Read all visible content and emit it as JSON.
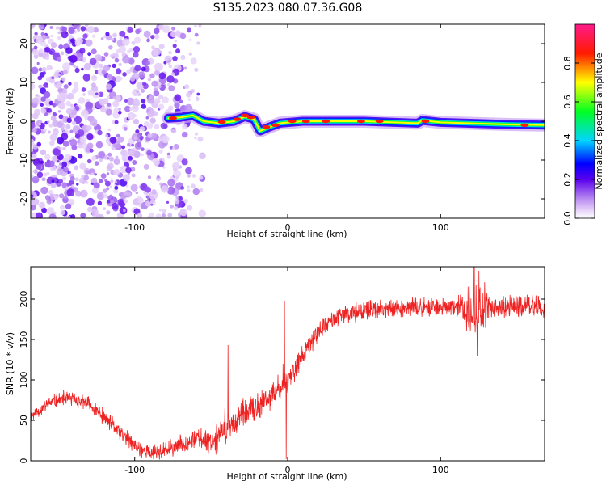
{
  "figure_title": "S135.2023.080.07.36.G08",
  "chart_data": [
    {
      "type": "heatmap",
      "title": "S135.2023.080.07.36.G08",
      "xlabel": "Height of straight line (km)",
      "ylabel": "Frequency (Hz)",
      "xlim": [
        -168,
        168
      ],
      "ylim": [
        -25,
        25
      ],
      "x_ticks": [
        -100,
        0,
        100
      ],
      "x_tick_labels": [
        "-100",
        "0",
        "100"
      ],
      "y_ticks": [
        -20,
        -10,
        0,
        10,
        20
      ],
      "y_tick_labels": [
        "-20",
        "-10",
        "0",
        "10",
        "20"
      ],
      "colorbar": {
        "label": "Normalized spectral amplitude",
        "range": [
          0,
          1
        ],
        "ticks": [
          0.0,
          0.2,
          0.4,
          0.6,
          0.8
        ],
        "tick_labels": [
          "0.0",
          "0.2",
          "0.4",
          "0.6",
          "0.8"
        ],
        "colormap": "rainbow (white → purple → blue → cyan → green → yellow → red → pink)"
      },
      "noise_region": {
        "x_range": [
          -168,
          -55
        ],
        "amplitude": "low (0.05–0.25)"
      },
      "ridge": [
        {
          "x": -78,
          "y": 0.8
        },
        {
          "x": -70,
          "y": 1.0
        },
        {
          "x": -62,
          "y": 1.5
        },
        {
          "x": -55,
          "y": 0.0
        },
        {
          "x": -45,
          "y": -0.5
        },
        {
          "x": -35,
          "y": 0.0
        },
        {
          "x": -28,
          "y": 1.2
        },
        {
          "x": -22,
          "y": 0.5
        },
        {
          "x": -18,
          "y": -2.5
        },
        {
          "x": -12,
          "y": -1.5
        },
        {
          "x": -5,
          "y": -0.5
        },
        {
          "x": 10,
          "y": 0.0
        },
        {
          "x": 50,
          "y": 0.0
        },
        {
          "x": 85,
          "y": -0.5
        },
        {
          "x": 88,
          "y": 0.2
        },
        {
          "x": 100,
          "y": -0.3
        },
        {
          "x": 140,
          "y": -0.8
        },
        {
          "x": 168,
          "y": -1.0
        }
      ],
      "peaks": [
        {
          "x": -75,
          "y": 0.8
        },
        {
          "x": -43,
          "y": -0.2
        },
        {
          "x": -33,
          "y": 0.5
        },
        {
          "x": -28,
          "y": 1.5
        },
        {
          "x": -24,
          "y": 1.0
        },
        {
          "x": -14,
          "y": -1.5
        },
        {
          "x": -8,
          "y": -1.0
        },
        {
          "x": 3,
          "y": 0.0
        },
        {
          "x": 12,
          "y": 0.0
        },
        {
          "x": 25,
          "y": 0.0
        },
        {
          "x": 48,
          "y": 0.0
        },
        {
          "x": 60,
          "y": 0.0
        },
        {
          "x": 90,
          "y": 0.0
        },
        {
          "x": 155,
          "y": -1.0
        }
      ],
      "noise_seed": 7
    },
    {
      "type": "line",
      "xlabel": "Height of straight line (km)",
      "ylabel": "SNR (10 * v/v)",
      "xlim": [
        -168,
        168
      ],
      "ylim": [
        0,
        240
      ],
      "x_ticks": [
        -100,
        0,
        100
      ],
      "x_tick_labels": [
        "-100",
        "0",
        "100"
      ],
      "y_ticks": [
        0,
        50,
        100,
        150,
        200
      ],
      "y_tick_labels": [
        "0",
        "50",
        "100",
        "150",
        "200"
      ],
      "series": [
        {
          "color": "#ee2222",
          "trend": [
            {
              "x": -168,
              "y": 55
            },
            {
              "x": -155,
              "y": 72
            },
            {
              "x": -145,
              "y": 78
            },
            {
              "x": -130,
              "y": 70
            },
            {
              "x": -115,
              "y": 45
            },
            {
              "x": -100,
              "y": 18
            },
            {
              "x": -90,
              "y": 10
            },
            {
              "x": -80,
              "y": 12
            },
            {
              "x": -70,
              "y": 20
            },
            {
              "x": -60,
              "y": 28
            },
            {
              "x": -50,
              "y": 25
            },
            {
              "x": -45,
              "y": 30
            },
            {
              "x": -40,
              "y": 40
            },
            {
              "x": -30,
              "y": 55
            },
            {
              "x": -20,
              "y": 65
            },
            {
              "x": -10,
              "y": 80
            },
            {
              "x": 0,
              "y": 100
            },
            {
              "x": 10,
              "y": 130
            },
            {
              "x": 20,
              "y": 160
            },
            {
              "x": 30,
              "y": 175
            },
            {
              "x": 45,
              "y": 185
            },
            {
              "x": 60,
              "y": 188
            },
            {
              "x": 80,
              "y": 190
            },
            {
              "x": 100,
              "y": 190
            },
            {
              "x": 120,
              "y": 188
            },
            {
              "x": 140,
              "y": 190
            },
            {
              "x": 168,
              "y": 192
            }
          ],
          "spikes": [
            {
              "x": -39,
              "y": 143
            },
            {
              "x": -41,
              "y": 65
            },
            {
              "x": -2,
              "y": 198
            },
            {
              "x": -1,
              "y": 2
            },
            {
              "x": -3,
              "y": 120
            },
            {
              "x": 122,
              "y": 240
            },
            {
              "x": 124,
              "y": 130
            },
            {
              "x": 125,
              "y": 235
            }
          ],
          "noise_amplitude": [
            {
              "x": -168,
              "a": 10
            },
            {
              "x": -60,
              "a": 14
            },
            {
              "x": -45,
              "a": 22
            },
            {
              "x": -10,
              "a": 22
            },
            {
              "x": 20,
              "a": 14
            },
            {
              "x": 110,
              "a": 14
            },
            {
              "x": 118,
              "a": 40
            },
            {
              "x": 128,
              "a": 40
            },
            {
              "x": 132,
              "a": 16
            },
            {
              "x": 168,
              "a": 18
            }
          ],
          "noise_seed": 11
        }
      ]
    }
  ]
}
